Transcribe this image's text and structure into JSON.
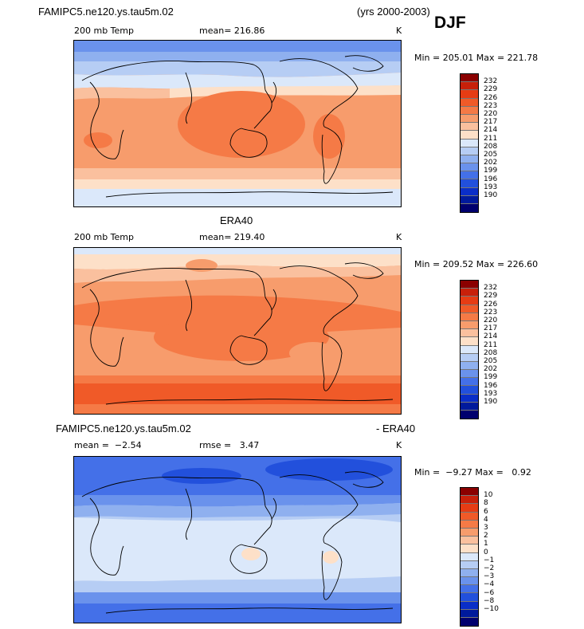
{
  "header": {
    "case": "FAMIPC5.ne120.ys.tau5m.02",
    "years": "(yrs 2000-2003)",
    "season": "DJF"
  },
  "panel1": {
    "field": "200 mb Temp",
    "mean": "mean= 216.86",
    "unit": "K",
    "minmax": "Min = 205.01 Max = 221.78"
  },
  "panel2": {
    "title": "ERA40",
    "field": "200 mb Temp",
    "mean": "mean= 219.40",
    "unit": "K",
    "minmax": "Min = 209.52 Max = 226.60"
  },
  "panel3": {
    "case": "FAMIPC5.ne120.ys.tau5m.02",
    "minus": "- ERA40",
    "mean": "mean =  −2.54",
    "rmse": "rmse =   3.47",
    "unit": "K",
    "minmax": "Min =  −9.27 Max =   0.92"
  },
  "colorbar_temp": {
    "labels": [
      "232",
      "229",
      "226",
      "223",
      "220",
      "217",
      "214",
      "211",
      "208",
      "205",
      "202",
      "199",
      "196",
      "193",
      "190"
    ],
    "colors": [
      "#8b0000",
      "#c8200a",
      "#e63c14",
      "#f05a28",
      "#f57a46",
      "#f79c6c",
      "#fac09e",
      "#fde0c8",
      "#dbe8fa",
      "#b6cdf4",
      "#8fb0ef",
      "#6a92ec",
      "#4470e8",
      "#2250dc",
      "#0a2ec8",
      "#001a9c",
      "#00006e"
    ]
  },
  "colorbar_diff": {
    "labels": [
      "10",
      "8",
      "6",
      "4",
      "3",
      "2",
      "1",
      "0",
      "−1",
      "−2",
      "−3",
      "−4",
      "−6",
      "−8",
      "−10"
    ],
    "colors": [
      "#8b0000",
      "#c8200a",
      "#e63c14",
      "#f05a28",
      "#f57a46",
      "#f79c6c",
      "#fac09e",
      "#fde0c8",
      "#dbe8fa",
      "#b6cdf4",
      "#8fb0ef",
      "#6a92ec",
      "#4470e8",
      "#2250dc",
      "#0a2ec8",
      "#001a9c",
      "#00006e"
    ]
  }
}
